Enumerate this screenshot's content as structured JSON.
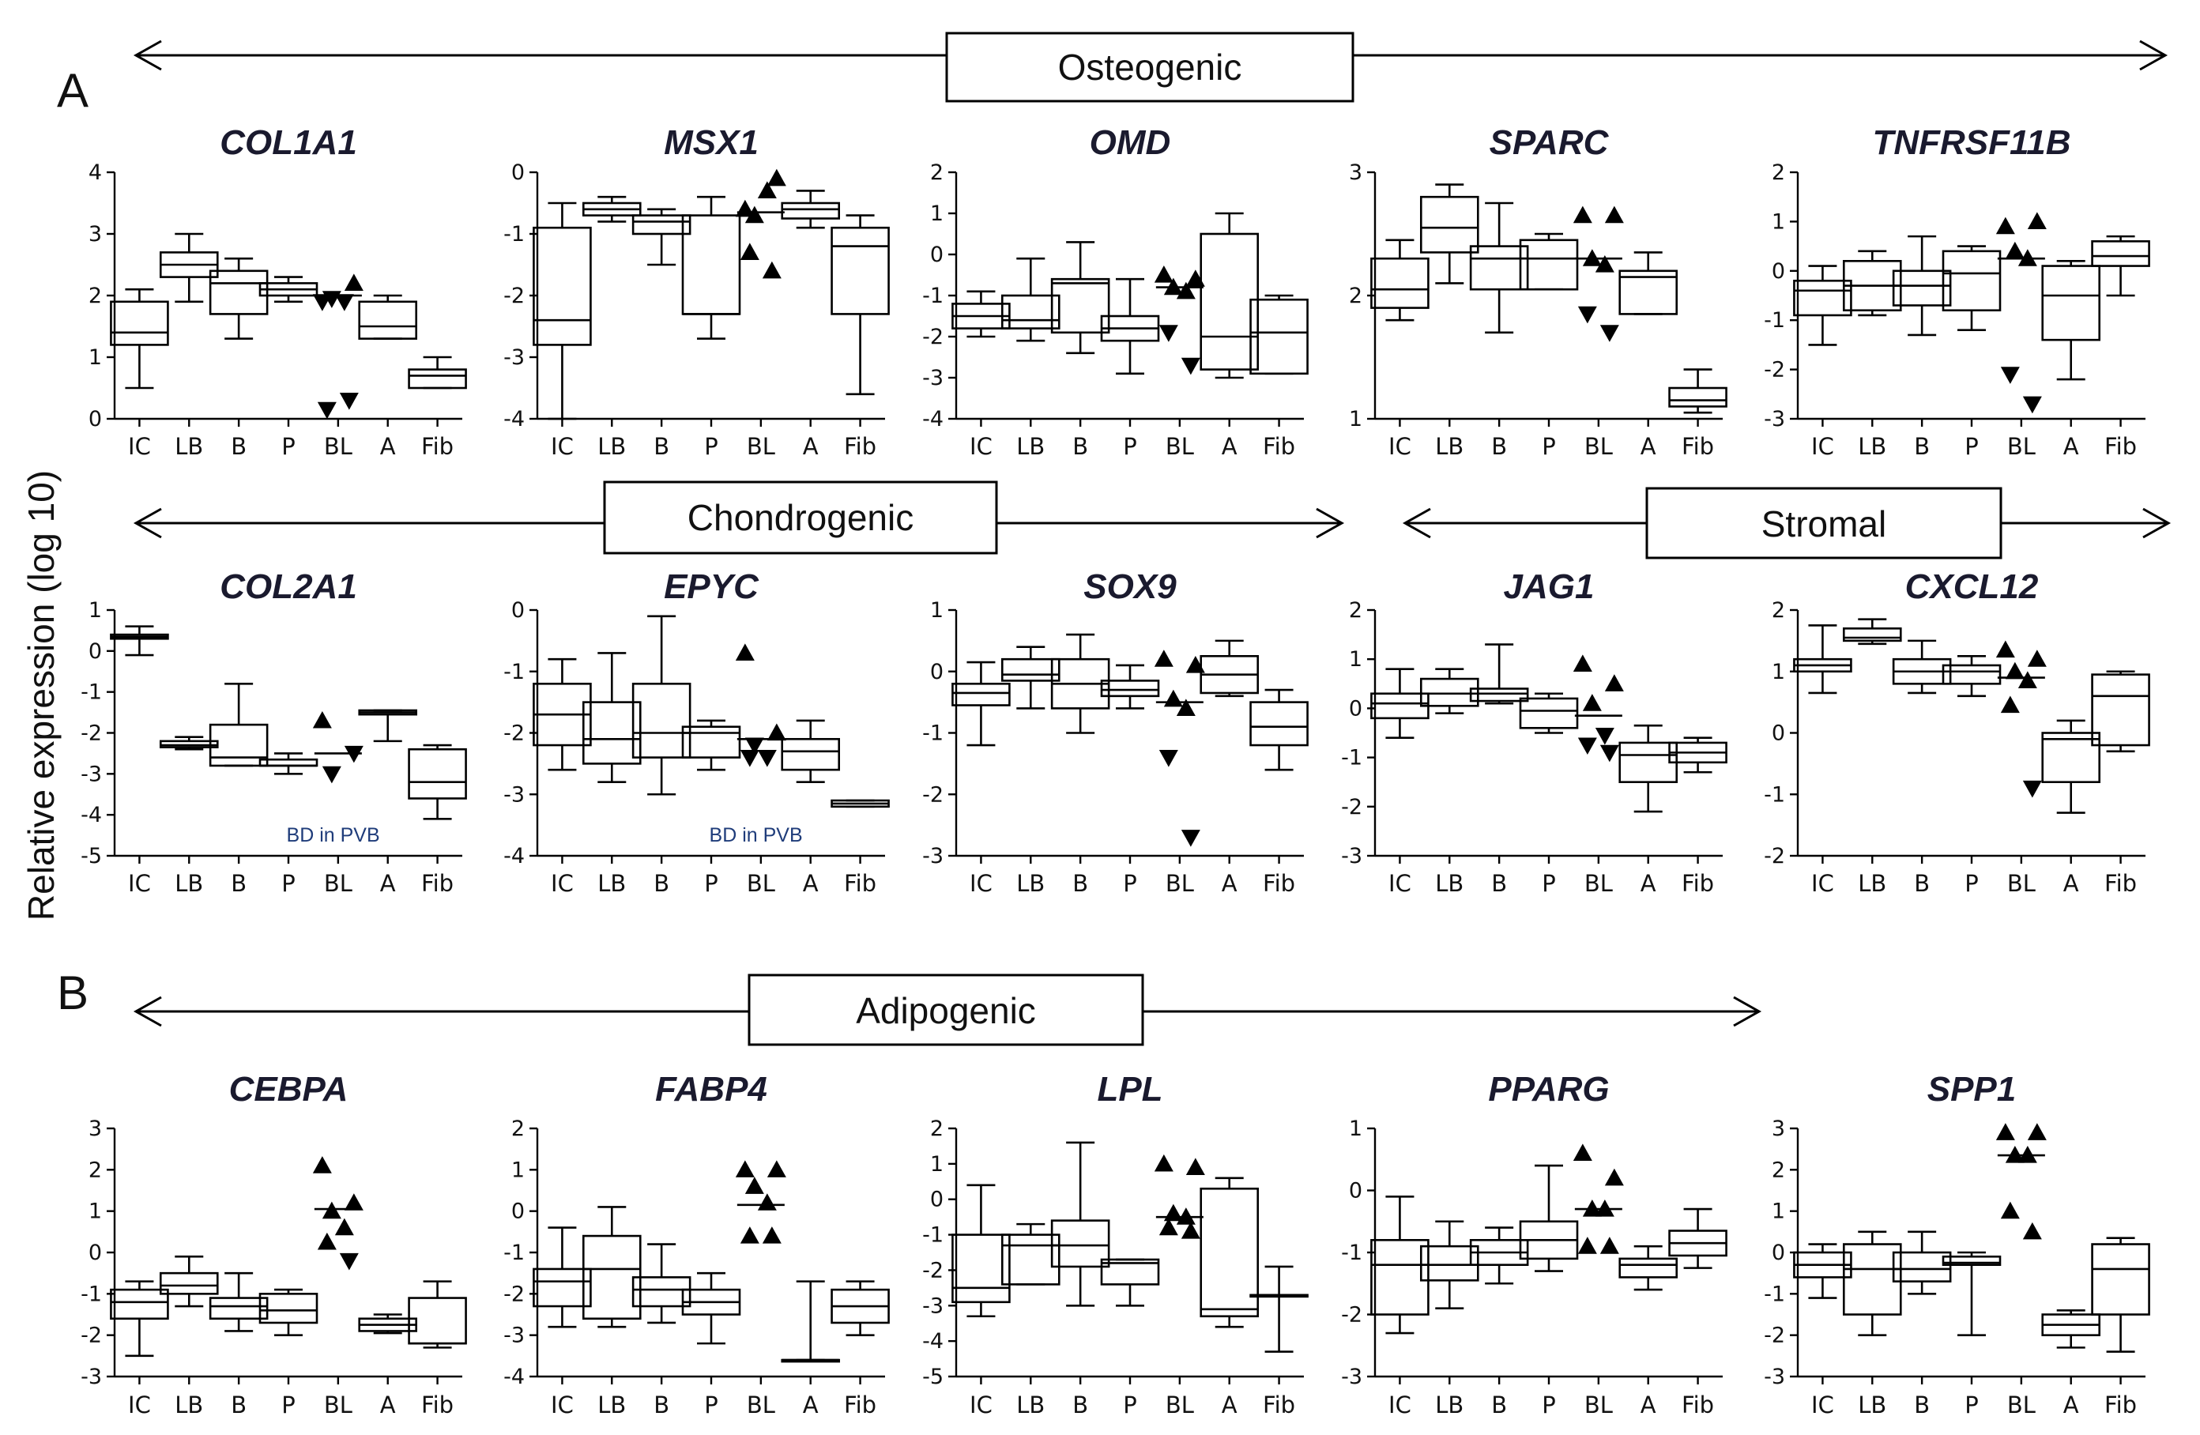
{
  "panel_labels": {
    "A": "A",
    "B": "B"
  },
  "y_axis_label": "Relative expression (log 10)",
  "banners": {
    "osteogenic": "Osteogenic",
    "chondrogenic": "Chondrogenic",
    "stromal": "Stromal",
    "adipogenic": "Adipogenic"
  },
  "categories": [
    "IC",
    "LB",
    "B",
    "P",
    "BL",
    "A",
    "Fib"
  ],
  "chart_data": [
    {
      "type": "box",
      "gene": "COL1A1",
      "ylim": [
        0,
        4
      ],
      "yticks": [
        0,
        1,
        2,
        3,
        4
      ],
      "boxes": [
        [
          0.5,
          1.2,
          1.4,
          1.9,
          2.1
        ],
        [
          1.9,
          2.3,
          2.5,
          2.7,
          3.0
        ],
        [
          1.3,
          1.7,
          2.2,
          2.4,
          2.6
        ],
        [
          1.9,
          2.0,
          2.1,
          2.2,
          2.3
        ],
        null,
        [
          1.3,
          1.3,
          1.5,
          1.9,
          2.0
        ],
        [
          0.5,
          0.5,
          0.7,
          0.8,
          1.0
        ]
      ],
      "points": [
        [],
        [],
        [],
        [],
        [
          1.9,
          2.2,
          1.95,
          1.9,
          0.15,
          0.3
        ],
        [],
        []
      ],
      "medians_marked": [
        [],
        [],
        [],
        [],
        [
          2.0
        ],
        [],
        []
      ]
    },
    {
      "type": "box",
      "gene": "MSX1",
      "ylim": [
        -4,
        0
      ],
      "yticks": [
        -4,
        -3,
        -2,
        -1,
        0
      ],
      "boxes": [
        [
          -4.0,
          -2.8,
          -2.4,
          -0.9,
          -0.5
        ],
        [
          -0.8,
          -0.7,
          -0.6,
          -0.5,
          -0.4
        ],
        [
          -1.5,
          -1.0,
          -0.8,
          -0.7,
          -0.6
        ],
        [
          -2.7,
          -2.3,
          -2.3,
          -0.7,
          -0.4
        ],
        null,
        [
          -0.9,
          -0.75,
          -0.6,
          -0.5,
          -0.3
        ],
        [
          -3.6,
          -2.3,
          -1.2,
          -0.9,
          -0.7
        ]
      ],
      "points": [
        [],
        [],
        [],
        [],
        [
          -0.6,
          -0.1,
          -0.7,
          -0.3,
          -1.3,
          -1.6
        ],
        [],
        []
      ],
      "medians_marked": [
        [],
        [],
        [],
        [],
        [
          -0.65
        ],
        [],
        []
      ]
    },
    {
      "type": "box",
      "gene": "OMD",
      "ylim": [
        -4,
        2
      ],
      "yticks": [
        -4,
        -3,
        -2,
        -1,
        0,
        1,
        2
      ],
      "boxes": [
        [
          -2.0,
          -1.8,
          -1.5,
          -1.2,
          -0.9
        ],
        [
          -2.1,
          -1.8,
          -1.6,
          -1.0,
          -0.1
        ],
        [
          -2.4,
          -1.9,
          -0.7,
          -0.6,
          0.3
        ],
        [
          -2.9,
          -2.1,
          -1.8,
          -1.5,
          -0.6
        ],
        null,
        [
          -3.0,
          -2.8,
          -2.0,
          0.5,
          1.0
        ],
        [
          -2.9,
          -2.9,
          -1.9,
          -1.1,
          -1.0
        ]
      ],
      "points": [
        [],
        [],
        [],
        [],
        [
          -0.5,
          -0.6,
          -0.8,
          -0.9,
          -1.9,
          -2.7
        ],
        [],
        []
      ],
      "medians_marked": [
        [],
        [],
        [],
        [],
        [
          -0.8
        ],
        [],
        []
      ]
    },
    {
      "type": "box",
      "gene": "SPARC",
      "ylim": [
        1,
        3
      ],
      "yticks": [
        1,
        2,
        3
      ],
      "boxes": [
        [
          1.8,
          1.9,
          2.05,
          2.3,
          2.45
        ],
        [
          2.1,
          2.35,
          2.55,
          2.8,
          2.9
        ],
        [
          1.7,
          2.05,
          2.3,
          2.4,
          2.75
        ],
        [
          2.05,
          2.05,
          2.3,
          2.45,
          2.5
        ],
        null,
        [
          1.85,
          1.85,
          2.15,
          2.2,
          2.35
        ],
        [
          1.05,
          1.1,
          1.15,
          1.25,
          1.4
        ]
      ],
      "points": [
        [],
        [],
        [],
        [],
        [
          2.65,
          2.65,
          2.3,
          2.25,
          1.85,
          1.7
        ],
        [],
        []
      ],
      "medians_marked": [
        [],
        [],
        [],
        [],
        [
          2.3
        ],
        [],
        []
      ]
    },
    {
      "type": "box",
      "gene": "TNFRSF11B",
      "ylim": [
        -3,
        2
      ],
      "yticks": [
        -3,
        -2,
        -1,
        0,
        1,
        2
      ],
      "boxes": [
        [
          -1.5,
          -0.9,
          -0.4,
          -0.2,
          0.1
        ],
        [
          -0.9,
          -0.8,
          -0.3,
          0.2,
          0.4
        ],
        [
          -1.3,
          -0.7,
          -0.3,
          0.0,
          0.7
        ],
        [
          -1.2,
          -0.8,
          -0.05,
          0.4,
          0.5
        ],
        null,
        [
          -2.2,
          -1.4,
          -0.5,
          0.1,
          0.2
        ],
        [
          -0.5,
          0.1,
          0.3,
          0.6,
          0.7
        ]
      ],
      "points": [
        [],
        [],
        [],
        [],
        [
          0.9,
          1.0,
          0.4,
          0.25,
          -2.1,
          -2.7
        ],
        [],
        []
      ],
      "medians_marked": [
        [],
        [],
        [],
        [],
        [
          0.25
        ],
        [],
        []
      ]
    },
    {
      "type": "box",
      "gene": "COL2A1",
      "ylim": [
        -5,
        1
      ],
      "yticks": [
        -5,
        -4,
        -3,
        -2,
        -1,
        0,
        1
      ],
      "boxes": [
        [
          -0.1,
          0.3,
          0.35,
          0.4,
          0.6
        ],
        [
          -2.4,
          -2.35,
          -2.3,
          -2.2,
          -2.1
        ],
        [
          -2.8,
          -2.8,
          -2.6,
          -1.8,
          -0.8
        ],
        [
          -3.0,
          -2.8,
          -2.8,
          -2.65,
          -2.5
        ],
        null,
        [
          -2.2,
          -1.55,
          -1.5,
          -1.45,
          -1.45
        ],
        [
          -4.1,
          -3.6,
          -3.2,
          -2.4,
          -2.3
        ]
      ],
      "points": [
        [],
        [],
        [],
        [],
        [
          -1.7,
          -2.5,
          -3.0
        ],
        [],
        []
      ],
      "medians_marked": [
        [],
        [],
        [],
        [],
        [
          -2.5
        ],
        [],
        []
      ],
      "note": "BD in PVB"
    },
    {
      "type": "box",
      "gene": "EPYC",
      "ylim": [
        -4,
        0
      ],
      "yticks": [
        -4,
        -3,
        -2,
        -1,
        0
      ],
      "boxes": [
        [
          -2.6,
          -2.2,
          -1.7,
          -1.2,
          -0.8
        ],
        [
          -2.8,
          -2.5,
          -2.1,
          -1.5,
          -0.7
        ],
        [
          -3.0,
          -2.4,
          -2.0,
          -1.2,
          -0.1
        ],
        [
          -2.6,
          -2.4,
          -2.0,
          -1.9,
          -1.8
        ],
        null,
        [
          -2.8,
          -2.6,
          -2.3,
          -2.1,
          -1.8
        ],
        [
          -3.2,
          -3.2,
          -3.15,
          -3.1,
          -3.1
        ]
      ],
      "points": [
        [],
        [],
        [],
        [],
        [
          -0.7,
          -2.0,
          -2.2,
          -2.4,
          -2.4
        ],
        [],
        []
      ],
      "medians_marked": [
        [],
        [],
        [],
        [],
        [
          -2.1
        ],
        [],
        []
      ],
      "note": "BD in PVB"
    },
    {
      "type": "box",
      "gene": "SOX9",
      "ylim": [
        -3,
        1
      ],
      "yticks": [
        -3,
        -2,
        -1,
        0,
        1
      ],
      "boxes": [
        [
          -1.2,
          -0.55,
          -0.35,
          -0.2,
          0.15
        ],
        [
          -0.6,
          -0.15,
          -0.05,
          0.2,
          0.4
        ],
        [
          -1.0,
          -0.6,
          -0.2,
          0.2,
          0.6
        ],
        [
          -0.6,
          -0.4,
          -0.3,
          -0.15,
          0.1
        ],
        null,
        [
          -0.4,
          -0.35,
          -0.05,
          0.25,
          0.5
        ],
        [
          -1.6,
          -1.2,
          -0.9,
          -0.5,
          -0.3
        ]
      ],
      "points": [
        [],
        [],
        [],
        [],
        [
          0.2,
          0.1,
          -0.45,
          -0.6,
          -1.4,
          -2.7
        ],
        [],
        []
      ],
      "medians_marked": [
        [],
        [],
        [],
        [],
        [
          -0.5
        ],
        [],
        []
      ]
    },
    {
      "type": "box",
      "gene": "JAG1",
      "ylim": [
        -3,
        2
      ],
      "yticks": [
        -3,
        -2,
        -1,
        0,
        1,
        2
      ],
      "boxes": [
        [
          -0.6,
          -0.2,
          0.1,
          0.3,
          0.8
        ],
        [
          -0.1,
          0.05,
          0.3,
          0.6,
          0.8
        ],
        [
          0.1,
          0.15,
          0.3,
          0.4,
          1.3
        ],
        [
          -0.5,
          -0.4,
          -0.05,
          0.2,
          0.3
        ],
        null,
        [
          -2.1,
          -1.5,
          -0.95,
          -0.7,
          -0.35
        ],
        [
          -1.3,
          -1.1,
          -0.9,
          -0.7,
          -0.6
        ]
      ],
      "points": [
        [],
        [],
        [],
        [],
        [
          0.9,
          0.5,
          0.1,
          -0.55,
          -0.75,
          -0.9
        ],
        [],
        []
      ],
      "medians_marked": [
        [],
        [],
        [],
        [],
        [
          -0.15
        ],
        [],
        []
      ]
    },
    {
      "type": "box",
      "gene": "CXCL12",
      "ylim": [
        -2,
        2
      ],
      "yticks": [
        -2,
        -1,
        0,
        1,
        2
      ],
      "boxes": [
        [
          0.65,
          1.0,
          1.1,
          1.2,
          1.75
        ],
        [
          1.45,
          1.5,
          1.55,
          1.7,
          1.85
        ],
        [
          0.65,
          0.8,
          1.0,
          1.2,
          1.5
        ],
        [
          0.6,
          0.8,
          1.0,
          1.1,
          1.25
        ],
        null,
        [
          -1.3,
          -0.8,
          -0.1,
          0.0,
          0.2
        ],
        [
          -0.3,
          -0.2,
          0.6,
          0.95,
          1.0
        ]
      ],
      "points": [
        [],
        [],
        [],
        [],
        [
          1.35,
          1.2,
          1.0,
          0.85,
          0.45,
          -0.9
        ],
        [],
        []
      ],
      "medians_marked": [
        [],
        [],
        [],
        [],
        [
          0.9
        ],
        [],
        []
      ]
    },
    {
      "type": "box",
      "gene": "CEBPA",
      "ylim": [
        -3,
        3
      ],
      "yticks": [
        -3,
        -2,
        -1,
        0,
        1,
        2,
        3
      ],
      "boxes": [
        [
          -2.5,
          -1.6,
          -1.2,
          -0.9,
          -0.7
        ],
        [
          -1.3,
          -1.0,
          -0.8,
          -0.5,
          -0.1
        ],
        [
          -1.9,
          -1.6,
          -1.3,
          -1.1,
          -0.5
        ],
        [
          -2.0,
          -1.7,
          -1.4,
          -1.0,
          -0.9
        ],
        null,
        [
          -1.95,
          -1.9,
          -1.75,
          -1.6,
          -1.5
        ],
        [
          -2.3,
          -2.2,
          -2.2,
          -1.1,
          -0.7
        ]
      ],
      "points": [
        [],
        [],
        [],
        [],
        [
          2.1,
          1.2,
          1.0,
          0.6,
          0.25,
          -0.2
        ],
        [],
        []
      ],
      "medians_marked": [
        [],
        [],
        [],
        [],
        [
          1.05
        ],
        [],
        []
      ]
    },
    {
      "type": "box",
      "gene": "FABP4",
      "ylim": [
        -4,
        2
      ],
      "yticks": [
        -4,
        -3,
        -2,
        -1,
        0,
        1,
        2
      ],
      "boxes": [
        [
          -2.8,
          -2.3,
          -1.7,
          -1.4,
          -0.4
        ],
        [
          -2.8,
          -2.6,
          -1.4,
          -0.6,
          0.1
        ],
        [
          -2.7,
          -2.3,
          -1.9,
          -1.6,
          -0.8
        ],
        [
          -3.2,
          -2.5,
          -2.2,
          -1.9,
          -1.5
        ],
        null,
        [
          -3.6,
          -3.6,
          -3.6,
          -3.6,
          -1.7
        ],
        [
          -3.0,
          -2.7,
          -2.3,
          -1.9,
          -1.7
        ]
      ],
      "points": [
        [],
        [],
        [],
        [],
        [
          1.0,
          1.0,
          0.6,
          0.2,
          -0.6,
          -0.6
        ],
        [],
        []
      ],
      "medians_marked": [
        [],
        [],
        [],
        [],
        [
          0.15
        ],
        [],
        []
      ]
    },
    {
      "type": "box",
      "gene": "LPL",
      "ylim": [
        -5,
        2
      ],
      "yticks": [
        -5,
        -4,
        -3,
        -2,
        -1,
        0,
        1,
        2
      ],
      "boxes": [
        [
          -3.3,
          -2.9,
          -2.5,
          -1.0,
          0.4
        ],
        [
          -2.4,
          -2.4,
          -1.3,
          -1.0,
          -0.7
        ],
        [
          -3.0,
          -1.9,
          -1.3,
          -0.6,
          1.6
        ],
        [
          -3.0,
          -2.4,
          -1.8,
          -1.7,
          -1.7
        ],
        null,
        [
          -3.6,
          -3.3,
          -3.1,
          0.3,
          0.6
        ],
        [
          -4.3,
          -2.7,
          -2.7,
          -2.7,
          -1.9
        ]
      ],
      "points": [
        [],
        [],
        [],
        [],
        [
          1.0,
          0.9,
          -0.4,
          -0.5,
          -0.8,
          -0.9
        ],
        [],
        []
      ],
      "medians_marked": [
        [],
        [],
        [],
        [],
        [
          -0.5
        ],
        [],
        []
      ]
    },
    {
      "type": "box",
      "gene": "PPARG",
      "ylim": [
        -3,
        1
      ],
      "yticks": [
        -3,
        -2,
        -1,
        0,
        1
      ],
      "boxes": [
        [
          -2.3,
          -2.0,
          -1.2,
          -0.8,
          -0.1
        ],
        [
          -1.9,
          -1.45,
          -1.2,
          -0.9,
          -0.5
        ],
        [
          -1.5,
          -1.2,
          -1.0,
          -0.8,
          -0.6
        ],
        [
          -1.3,
          -1.1,
          -0.8,
          -0.5,
          0.4
        ],
        null,
        [
          -1.6,
          -1.4,
          -1.2,
          -1.1,
          -0.9
        ],
        [
          -1.25,
          -1.05,
          -0.85,
          -0.65,
          -0.3
        ]
      ],
      "points": [
        [],
        [],
        [],
        [],
        [
          0.6,
          0.2,
          -0.3,
          -0.3,
          -0.9,
          -0.9
        ],
        [],
        []
      ],
      "medians_marked": [
        [],
        [],
        [],
        [],
        [
          -0.3
        ],
        [],
        []
      ]
    },
    {
      "type": "box",
      "gene": "SPP1",
      "ylim": [
        -3,
        3
      ],
      "yticks": [
        -3,
        -2,
        -1,
        0,
        1,
        2,
        3
      ],
      "boxes": [
        [
          -1.1,
          -0.6,
          -0.3,
          0.0,
          0.2
        ],
        [
          -2.0,
          -1.5,
          -0.4,
          0.2,
          0.5
        ],
        [
          -1.0,
          -0.7,
          -0.4,
          0.0,
          0.5
        ],
        [
          -2.0,
          -0.3,
          -0.25,
          -0.1,
          0.0
        ],
        null,
        [
          -2.3,
          -2.0,
          -1.75,
          -1.5,
          -1.4
        ],
        [
          -2.4,
          -1.5,
          -0.4,
          0.2,
          0.35
        ]
      ],
      "points": [
        [],
        [],
        [],
        [],
        [
          2.9,
          2.9,
          2.35,
          2.35,
          1.0,
          0.5
        ],
        [],
        []
      ],
      "medians_marked": [
        [],
        [],
        [],
        [],
        [
          2.35
        ],
        [],
        []
      ]
    }
  ]
}
